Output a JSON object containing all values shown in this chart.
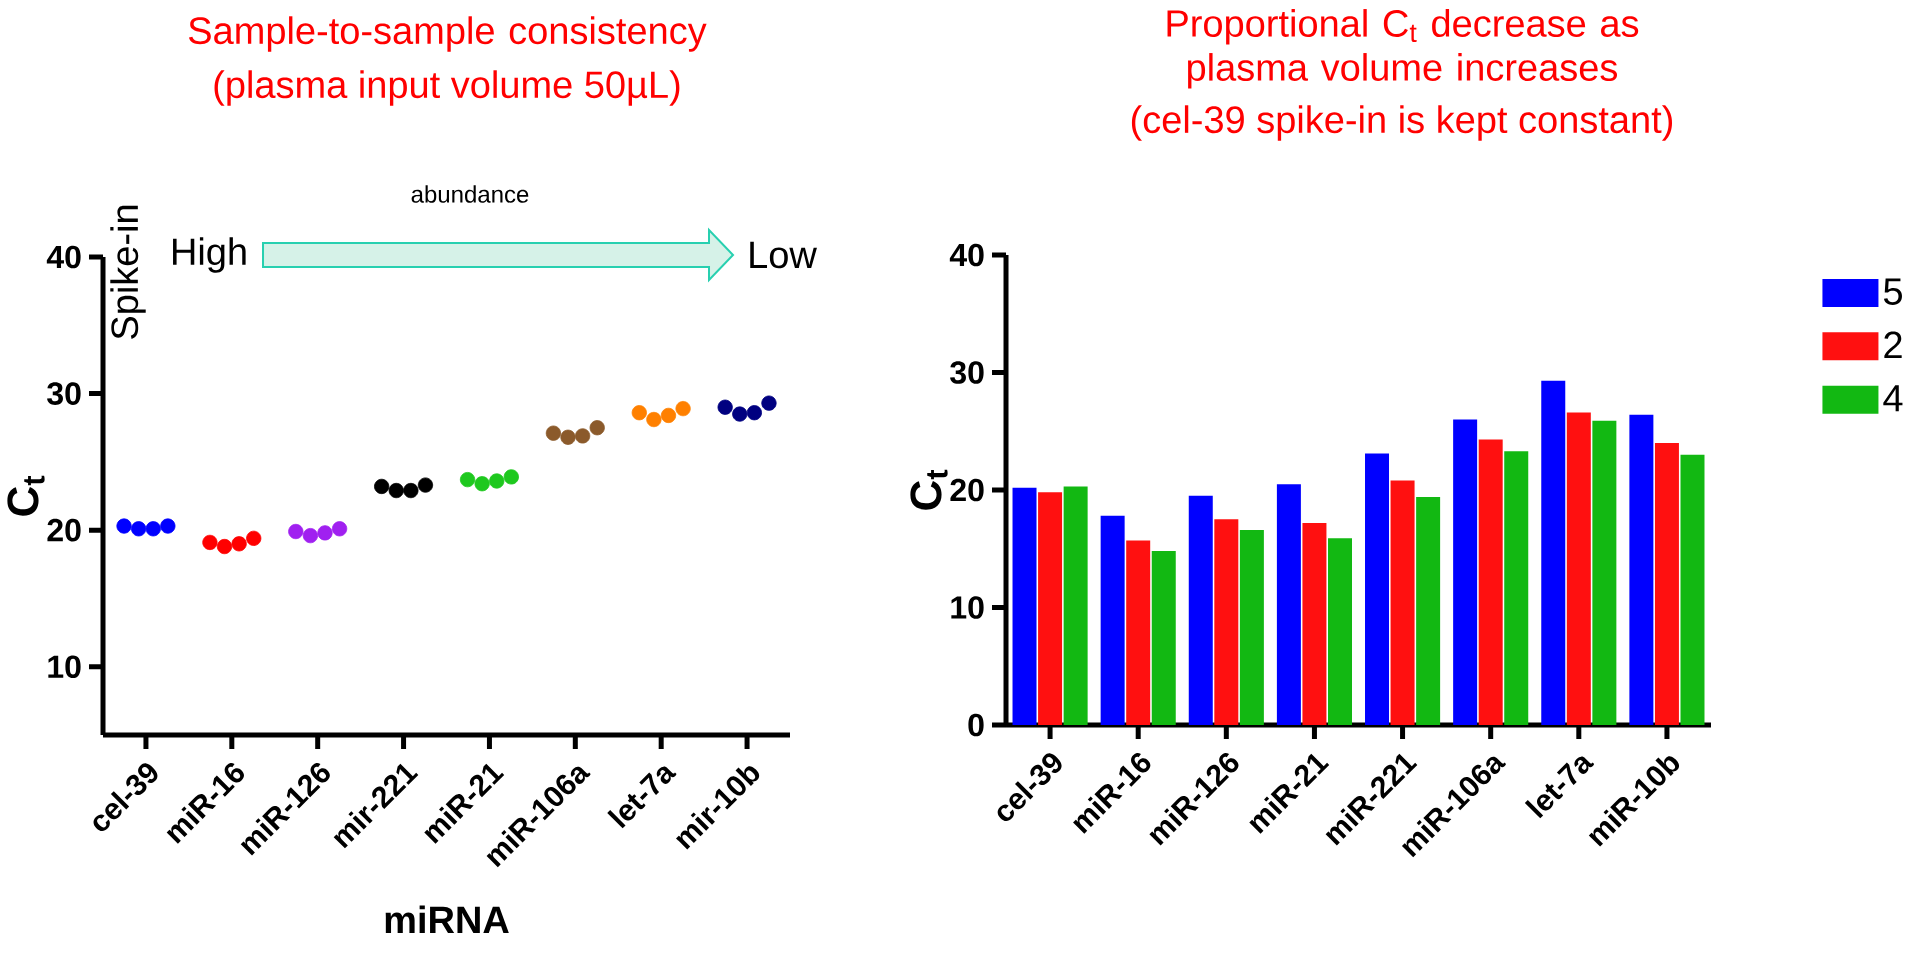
{
  "chart_data": [
    {
      "type": "scatter",
      "title": "Sample-to-sample consistency",
      "subtitle": "(plasma input volume 50µL)",
      "xlabel": "miRNA",
      "ylabel": "C$_{t}$",
      "categories": [
        "cel-39",
        "miR-16",
        "miR-126",
        "mir-221",
        "miR-21",
        "miR-106a",
        "let-7a",
        "mir-10b"
      ],
      "ylim": [
        5,
        40
      ],
      "yticks": [
        10,
        20,
        30,
        40
      ],
      "marker": "circle",
      "annotations": [
        "abundance",
        "High",
        "Low",
        "Spike-in"
      ],
      "series": [
        {
          "values": [
            20.3,
            19.1,
            19.9,
            23.2,
            23.7,
            27.1,
            28.6,
            29.0
          ],
          "colors": [
            "#0000ff",
            "#ff0000",
            "#a020f0",
            "#000000",
            "#1ec81e",
            "#8b5a2b",
            "#ff8000",
            "#000080"
          ]
        },
        {
          "values": [
            20.1,
            18.8,
            19.6,
            22.9,
            23.4,
            26.8,
            28.1,
            28.5
          ],
          "colors": [
            "#0000ff",
            "#ff0000",
            "#a020f0",
            "#000000",
            "#1ec81e",
            "#8b5a2b",
            "#ff8000",
            "#000080"
          ]
        },
        {
          "values": [
            20.1,
            19.0,
            19.8,
            22.9,
            23.6,
            26.9,
            28.4,
            28.6
          ],
          "colors": [
            "#0000ff",
            "#ff0000",
            "#a020f0",
            "#000000",
            "#1ec81e",
            "#8b5a2b",
            "#ff8000",
            "#000080"
          ]
        },
        {
          "values": [
            20.3,
            19.4,
            20.1,
            23.3,
            23.9,
            27.5,
            28.9,
            29.3
          ],
          "colors": [
            "#0000ff",
            "#ff0000",
            "#a020f0",
            "#000000",
            "#1ec81e",
            "#8b5a2b",
            "#ff8000",
            "#000080"
          ]
        }
      ]
    },
    {
      "type": "bar",
      "title": "Proportional C$_{t}$ decrease as plasma volume increases",
      "subtitle": "(cel-39 spike-in is kept constant)",
      "ylabel": "C$_{t}$",
      "categories": [
        "cel-39",
        "miR-16",
        "miR-126",
        "miR-21",
        "miR-221",
        "miR-106a",
        "let-7a",
        "miR-10b"
      ],
      "ylim": [
        0,
        40
      ],
      "yticks": [
        0,
        10,
        20,
        30,
        40
      ],
      "legend": "right",
      "series": [
        {
          "name": "5",
          "color": "#0000ff",
          "values": [
            20.2,
            17.8,
            19.5,
            20.5,
            23.1,
            26.0,
            29.3,
            26.4
          ]
        },
        {
          "name": "2",
          "color": "#ff1010",
          "values": [
            19.8,
            15.7,
            17.5,
            17.2,
            20.8,
            24.3,
            26.6,
            24.0
          ]
        },
        {
          "name": "4",
          "color": "#12b812",
          "values": [
            20.3,
            14.8,
            16.6,
            15.9,
            19.4,
            23.3,
            25.9,
            23.0
          ]
        }
      ]
    }
  ]
}
